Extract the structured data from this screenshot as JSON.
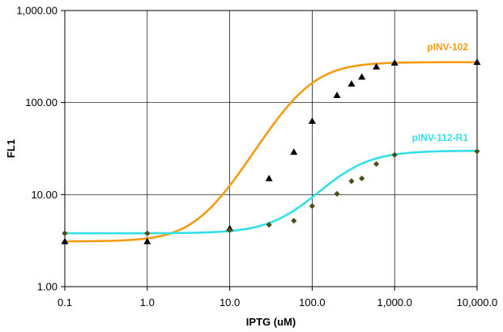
{
  "chart_data": {
    "type": "scatter",
    "title": "",
    "xlabel": "IPTG (uM)",
    "ylabel": "FL1",
    "x_scale": "log",
    "y_scale": "log",
    "xlim": [
      0.1,
      10000
    ],
    "ylim": [
      1,
      1000
    ],
    "x_ticks": [
      0.1,
      1,
      10,
      100,
      1000,
      10000
    ],
    "x_tick_labels": [
      "0.1",
      "1.0",
      "10.0",
      "100.0",
      "1,000.0",
      "10,000.0"
    ],
    "y_ticks": [
      1,
      10,
      100,
      1000
    ],
    "y_tick_labels": [
      "1.00",
      "10.00",
      "100.00",
      "1,000.00"
    ],
    "grid": true,
    "series": [
      {
        "name": "pINV-102",
        "color": "#f39c12",
        "marker": "triangle",
        "marker_color": "#000000",
        "x": [
          0.1,
          1,
          10,
          30,
          60,
          100,
          200,
          300,
          400,
          600,
          1000,
          10000
        ],
        "y": [
          3.1,
          3.1,
          4.3,
          15,
          29,
          63,
          120,
          160,
          190,
          245,
          270,
          275
        ],
        "fit": {
          "bottom": 3.1,
          "top": 275,
          "ec50": 80,
          "hill": 1.6
        }
      },
      {
        "name": "pINV-112-R1",
        "color": "#33e0e8",
        "marker": "diamond",
        "marker_color": "#4d4d1a",
        "x": [
          0.1,
          1,
          10,
          30,
          60,
          100,
          200,
          300,
          400,
          600,
          1000,
          10000
        ],
        "y": [
          3.8,
          3.8,
          4.1,
          4.7,
          5.2,
          7.5,
          10.2,
          14,
          15,
          21.5,
          27,
          29.5
        ],
        "fit": {
          "bottom": 3.8,
          "top": 30,
          "ec50": 240,
          "hill": 1.5
        }
      }
    ]
  }
}
